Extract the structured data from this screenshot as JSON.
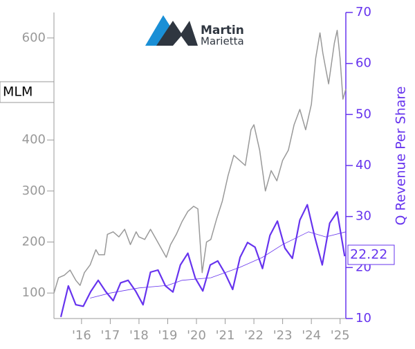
{
  "chart_data": {
    "type": "line",
    "logo": {
      "line1": "Martin",
      "line2": "Marietta"
    },
    "y_label": "Q Revenue Per Share",
    "price_label": "MLM",
    "revenue_label": "22.22",
    "xlim": [
      2015.04,
      2025.2
    ],
    "xticks": [
      {
        "value": 2016,
        "label": "'16"
      },
      {
        "value": 2017,
        "label": "'17"
      },
      {
        "value": 2018,
        "label": "'18"
      },
      {
        "value": 2019,
        "label": "'19"
      },
      {
        "value": 2020,
        "label": "'20"
      },
      {
        "value": 2021,
        "label": "'21"
      },
      {
        "value": 2022,
        "label": "'22"
      },
      {
        "value": 2023,
        "label": "'23"
      },
      {
        "value": 2024,
        "label": "'24"
      },
      {
        "value": 2025,
        "label": "'25"
      }
    ],
    "ylim": [
      50,
      650
    ],
    "yticks": [
      100,
      200,
      300,
      400,
      500,
      600
    ],
    "y2lim": [
      10,
      70
    ],
    "y2ticks": [
      10,
      20,
      30,
      40,
      50,
      60,
      70
    ],
    "series": [
      {
        "color": "#999999",
        "width": 1.5,
        "x": [
          2015.04,
          2015.2,
          2015.4,
          2015.6,
          2015.8,
          2015.95,
          2016.1,
          2016.3,
          2016.5,
          2016.6,
          2016.8,
          2016.9,
          2017.1,
          2017.3,
          2017.5,
          2017.7,
          2017.9,
          2018.0,
          2018.2,
          2018.4,
          2018.6,
          2018.8,
          2018.95,
          2019.1,
          2019.3,
          2019.5,
          2019.7,
          2019.9,
          2020.05,
          2020.2,
          2020.35,
          2020.5,
          2020.7,
          2020.9,
          2021.1,
          2021.3,
          2021.5,
          2021.7,
          2021.9,
          2022.0,
          2022.2,
          2022.4,
          2022.6,
          2022.8,
          2023.0,
          2023.2,
          2023.4,
          2023.6,
          2023.8,
          2024.0,
          2024.15,
          2024.3,
          2024.4,
          2024.5,
          2024.6,
          2024.8,
          2024.9,
          2025.0,
          2025.1,
          2025.2
        ],
        "values": [
          100,
          130,
          135,
          145,
          125,
          115,
          140,
          155,
          185,
          175,
          175,
          215,
          220,
          210,
          225,
          195,
          220,
          210,
          205,
          225,
          205,
          185,
          170,
          195,
          215,
          240,
          260,
          270,
          265,
          140,
          200,
          205,
          245,
          280,
          330,
          370,
          360,
          350,
          420,
          430,
          380,
          300,
          340,
          320,
          360,
          380,
          430,
          460,
          420,
          470,
          560,
          610,
          570,
          540,
          510,
          590,
          615,
          560,
          480,
          500
        ]
      },
      {
        "color": "#6633ee",
        "width": 2.2,
        "axis": "y2",
        "x": [
          2015.28,
          2015.54,
          2015.8,
          2016.06,
          2016.32,
          2016.58,
          2016.84,
          2017.1,
          2017.36,
          2017.62,
          2017.88,
          2018.14,
          2018.4,
          2018.66,
          2018.92,
          2019.18,
          2019.44,
          2019.7,
          2019.96,
          2020.22,
          2020.48,
          2020.74,
          2021.0,
          2021.26,
          2021.52,
          2021.78,
          2022.04,
          2022.3,
          2022.56,
          2022.82,
          2023.08,
          2023.34,
          2023.6,
          2023.86,
          2024.12,
          2024.38,
          2024.64,
          2024.9,
          2025.16
        ],
        "values": [
          10.3,
          16.4,
          12.7,
          12.4,
          15.3,
          17.5,
          15.3,
          13.5,
          17,
          17.5,
          15.4,
          12.7,
          19.1,
          19.5,
          16.4,
          15.2,
          20.5,
          22.8,
          17.9,
          15.4,
          20.5,
          21.3,
          18.8,
          15.7,
          22,
          24.9,
          24,
          19.8,
          26.3,
          29.1,
          23.8,
          21.8,
          29.3,
          32.3,
          26,
          20.5,
          28.7,
          30.9,
          22.2
        ]
      },
      {
        "color": "#6633ee",
        "width": 0.8,
        "axis": "y2",
        "x": [
          2016.3,
          2017.0,
          2018.0,
          2019.0,
          2019.5,
          2020.5,
          2021.5,
          2022.3,
          2023.0,
          2023.9,
          2024.5,
          2025.2
        ],
        "values": [
          14,
          15,
          16,
          16.5,
          17.5,
          18,
          20,
          22,
          24.5,
          27,
          26,
          27
        ]
      }
    ]
  }
}
